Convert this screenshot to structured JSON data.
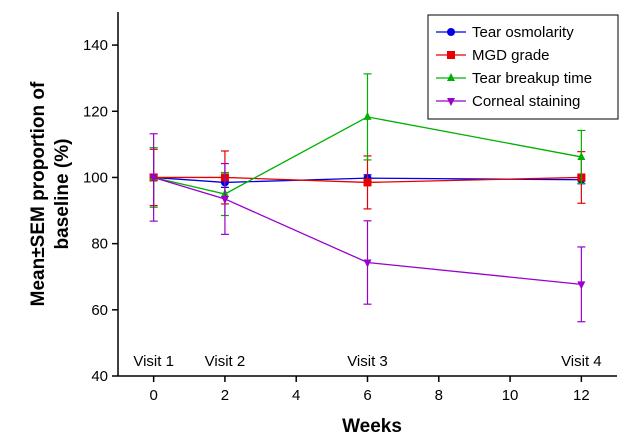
{
  "chart_data": {
    "type": "line",
    "xlabel": "Weeks",
    "ylabel": "Mean±SEM proportion of baseline (%)",
    "ylabel_lines": [
      "Mean±SEM proportion of",
      "baseline (%)"
    ],
    "xlim": [
      -1,
      13
    ],
    "ylim": [
      40,
      150
    ],
    "xticks": [
      0,
      2,
      4,
      6,
      8,
      10,
      12
    ],
    "yticks": [
      40,
      60,
      80,
      100,
      120,
      140
    ],
    "grid": false,
    "legend_position": "top-right",
    "annotations": [
      {
        "text": "Visit 1",
        "x": 0
      },
      {
        "text": "Visit 2",
        "x": 2
      },
      {
        "text": "Visit 3",
        "x": 6
      },
      {
        "text": "Visit 4",
        "x": 12
      }
    ],
    "x": [
      0,
      2,
      6,
      12
    ],
    "series": [
      {
        "name": "Tear osmolarity",
        "color": "#0000e6",
        "marker": "circle",
        "values": [
          100,
          98.5,
          99.8,
          99.3
        ],
        "err": [
          1.0,
          1.5,
          1.0,
          1.2
        ]
      },
      {
        "name": "MGD grade",
        "color": "#e60000",
        "marker": "square",
        "values": [
          100,
          100,
          98.5,
          100
        ],
        "err": [
          8.5,
          8.0,
          8.0,
          7.8
        ]
      },
      {
        "name": "Tear breakup time",
        "color": "#00b000",
        "marker": "triangle-up",
        "values": [
          100,
          95,
          118.3,
          106.2
        ],
        "err": [
          9.0,
          6.5,
          13.0,
          8.0
        ]
      },
      {
        "name": "Corneal staining",
        "color": "#9900cc",
        "marker": "triangle-down",
        "values": [
          100,
          93.5,
          74.3,
          67.7
        ],
        "err": [
          13.2,
          10.7,
          12.6,
          11.3
        ]
      }
    ]
  }
}
